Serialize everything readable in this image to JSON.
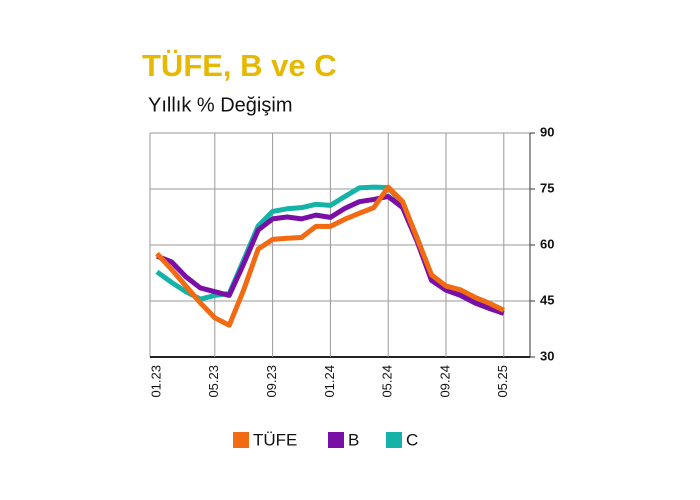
{
  "chart_data": {
    "type": "line",
    "title": "TÜFE, B ve C",
    "subtitle": "Yıllık % Değişim",
    "categories": [
      "01.23",
      null,
      null,
      null,
      "05.23",
      null,
      null,
      null,
      "09.23",
      null,
      null,
      null,
      "01.24",
      null,
      null,
      null,
      "05.24",
      null,
      null,
      null,
      "09.24",
      null,
      null,
      null,
      "05.25"
    ],
    "series": [
      {
        "name": "TÜFE",
        "color": "#f26a12",
        "values": [
          57.7,
          53.5,
          49,
          44.5,
          40.5,
          38.5,
          48,
          58.9,
          61.5,
          61.8,
          62,
          65,
          65,
          66.9,
          68.5,
          70,
          75.5,
          71.6,
          61.8,
          52,
          49,
          48,
          46,
          44.4,
          42.5
        ]
      },
      {
        "name": "B",
        "color": "#7a0fa8",
        "values": [
          57,
          55.5,
          51.5,
          48.5,
          47.5,
          46.5,
          55,
          64,
          67,
          67.5,
          67,
          68,
          67.4,
          69.8,
          71.6,
          72.2,
          73,
          70,
          61,
          50.5,
          47.9,
          46.5,
          44.5,
          43,
          41.7
        ]
      },
      {
        "name": "C",
        "color": "#14b3a8",
        "values": [
          52.8,
          50,
          47.5,
          45.5,
          46.5,
          47,
          56,
          65.1,
          69,
          69.7,
          70,
          70.9,
          70.6,
          73,
          75.3,
          75.5,
          75.4,
          71,
          62,
          51.5,
          48.6,
          47.8,
          45.8,
          44.2,
          42.5
        ]
      }
    ],
    "ylim": [
      30,
      90
    ],
    "yticks": [
      30,
      45,
      60,
      75,
      90
    ],
    "grid": true,
    "title_color": "#e6b800"
  }
}
